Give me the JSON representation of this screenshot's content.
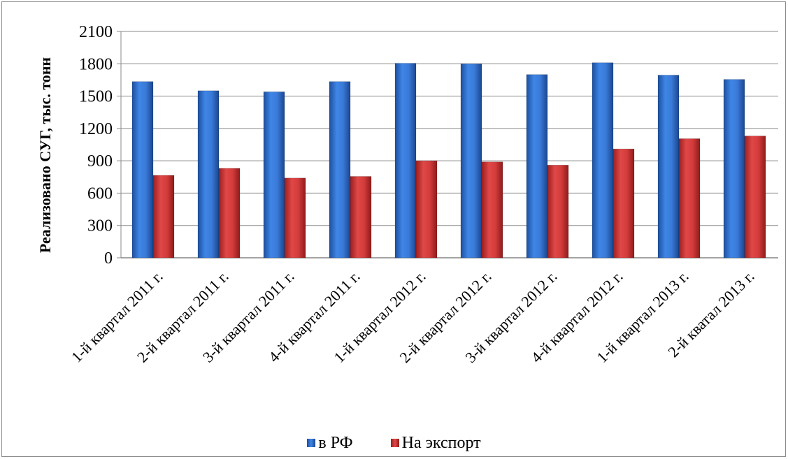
{
  "chart_data": {
    "type": "bar",
    "ylabel": "Реализовано СУГ, тыс. тонн",
    "xlabel": "",
    "ylim": [
      0,
      2100
    ],
    "yticks": [
      0,
      300,
      600,
      900,
      1200,
      1500,
      1800,
      2100
    ],
    "grid": true,
    "legend_position": "bottom",
    "categories": [
      "1-й квартал 2011 г.",
      "2-й квартал 2011 г.",
      "3-й квартал 2011 г.",
      "4-й квартал 2011 г.",
      "1-й квартал 2012 г.",
      "2-й квартал 2012 г.",
      "3-й квартал 2012 г.",
      "4-й квартал 2012 г.",
      "1-й квартал 2013 г.",
      "2-й кватал 2013 г."
    ],
    "series": [
      {
        "name": "в РФ",
        "color": "#2f6fcf",
        "values": [
          1635,
          1550,
          1540,
          1635,
          1805,
          1800,
          1700,
          1810,
          1695,
          1655
        ]
      },
      {
        "name": "На экспорт",
        "color": "#d23b3b",
        "values": [
          765,
          830,
          740,
          755,
          900,
          890,
          860,
          1010,
          1105,
          1130
        ]
      }
    ]
  }
}
